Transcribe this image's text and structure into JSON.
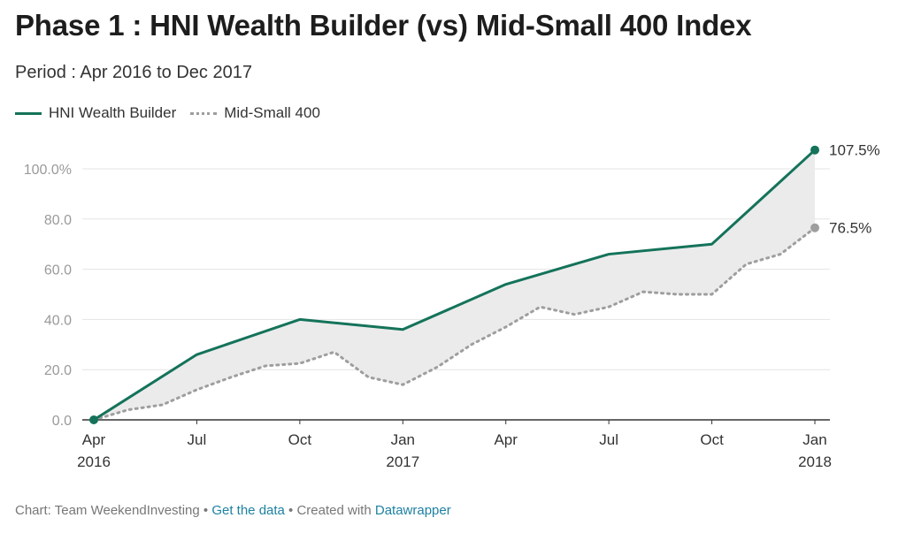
{
  "title": "Phase 1 : HNI Wealth Builder (vs) Mid-Small 400 Index",
  "subtitle": "Period : Apr 2016 to Dec 2017",
  "footer": {
    "credit": "Chart: Team WeekendInvesting",
    "sep1": " • ",
    "get_data": "Get the data",
    "sep2": " • Created with ",
    "tool": "Datawrapper"
  },
  "colors": {
    "hni": "#14735a",
    "midsmall": "#9e9e9e",
    "fill": "#ebebeb",
    "grid": "#e4e4e4",
    "axis": "#333333",
    "ticklabel": "#9a9a9a"
  },
  "chart_data": {
    "type": "line",
    "x": [
      "2016-04",
      "2016-05",
      "2016-06",
      "2016-07",
      "2016-08",
      "2016-09",
      "2016-10",
      "2016-11",
      "2016-12",
      "2017-01",
      "2017-02",
      "2017-03",
      "2017-04",
      "2017-05",
      "2017-06",
      "2017-07",
      "2017-08",
      "2017-09",
      "2017-10",
      "2017-11",
      "2017-12",
      "2018-01"
    ],
    "series": [
      {
        "name": "HNI Wealth Builder",
        "values": [
          0,
          null,
          null,
          26,
          null,
          null,
          40,
          null,
          null,
          36,
          null,
          null,
          54,
          null,
          null,
          66,
          null,
          null,
          70,
          null,
          null,
          107.5
        ],
        "style": "solid",
        "end_label": "107.5%"
      },
      {
        "name": "Mid-Small 400",
        "values": [
          0,
          4,
          6,
          12,
          17,
          21.5,
          22.5,
          27,
          17,
          14,
          21,
          30,
          37,
          45,
          42,
          45,
          51,
          50,
          50,
          62,
          66,
          76.5
        ],
        "style": "dotted",
        "end_label": "76.5%"
      }
    ],
    "fill_between": true,
    "ylim": [
      0,
      110
    ],
    "yticks": [
      {
        "value": 0,
        "label": "0.0"
      },
      {
        "value": 20,
        "label": "20.0"
      },
      {
        "value": 40,
        "label": "40.0"
      },
      {
        "value": 60,
        "label": "60.0"
      },
      {
        "value": 80,
        "label": "80.0"
      },
      {
        "value": 100,
        "label": "100.0%"
      }
    ],
    "xticks": [
      {
        "month": "2016-04",
        "label": "Apr",
        "year": "2016"
      },
      {
        "month": "2016-07",
        "label": "Jul",
        "year": ""
      },
      {
        "month": "2016-10",
        "label": "Oct",
        "year": ""
      },
      {
        "month": "2017-01",
        "label": "Jan",
        "year": "2017"
      },
      {
        "month": "2017-04",
        "label": "Apr",
        "year": ""
      },
      {
        "month": "2017-07",
        "label": "Jul",
        "year": ""
      },
      {
        "month": "2017-10",
        "label": "Oct",
        "year": ""
      },
      {
        "month": "2018-01",
        "label": "Jan",
        "year": "2018"
      }
    ],
    "legend_position": "top-left",
    "grid": true
  }
}
